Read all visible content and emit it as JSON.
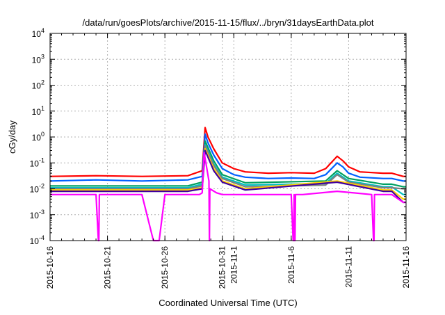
{
  "chart_data": {
    "type": "line",
    "title": "/data/run/goesPlots/archive/2015-11-15/flux/../bryn/31daysEarthData.plot",
    "xlabel": "Coordinated Universal Time (UTC)",
    "ylabel": "cGy/day",
    "yscale": "log",
    "ylim": [
      0.0001,
      10000
    ],
    "y_ticks": [
      {
        "value": 0.0001,
        "base": "10",
        "exp": "-4"
      },
      {
        "value": 0.001,
        "base": "10",
        "exp": "-3"
      },
      {
        "value": 0.01,
        "base": "10",
        "exp": "-2"
      },
      {
        "value": 0.1,
        "base": "10",
        "exp": "-1"
      },
      {
        "value": 1,
        "base": "10",
        "exp": "0"
      },
      {
        "value": 10,
        "base": "10",
        "exp": "1"
      },
      {
        "value": 100,
        "base": "10",
        "exp": "2"
      },
      {
        "value": 1000,
        "base": "10",
        "exp": "3"
      },
      {
        "value": 10000,
        "base": "10",
        "exp": "4"
      }
    ],
    "xlim": [
      "2015-10-16",
      "2015-11-16"
    ],
    "x_ticks": [
      {
        "date": "2015-10-16",
        "label": "2015-10-16"
      },
      {
        "date": "2015-10-21",
        "label": "2015-10-21"
      },
      {
        "date": "2015-10-26",
        "label": "2015-10-26"
      },
      {
        "date": "2015-10-31",
        "label": "2015-10-31"
      },
      {
        "date": "2015-11-01",
        "label": "2015-11-1"
      },
      {
        "date": "2015-11-06",
        "label": "2015-11-6"
      },
      {
        "date": "2015-11-11",
        "label": "2015-11-11"
      },
      {
        "date": "2015-11-16",
        "label": "2015-11-16"
      }
    ],
    "grid": true,
    "series": [
      {
        "color": "#ff0000",
        "x": [
          "2015-10-16",
          "2015-10-20",
          "2015-10-24",
          "2015-10-28",
          "2015-10-29T06:00",
          "2015-10-29T12:00",
          "2015-10-29T18:00",
          "2015-10-30T06:00",
          "2015-10-30T18:00",
          "2015-10-31",
          "2015-11-01",
          "2015-11-02",
          "2015-11-04",
          "2015-11-06",
          "2015-11-08",
          "2015-11-09",
          "2015-11-10",
          "2015-11-10T12:00",
          "2015-11-11",
          "2015-11-12",
          "2015-11-14",
          "2015-11-14T18:00",
          "2015-11-15T18:00",
          "2015-11-16"
        ],
        "values": [
          0.03,
          0.032,
          0.03,
          0.032,
          0.05,
          2.3,
          1.0,
          0.35,
          0.15,
          0.1,
          0.06,
          0.045,
          0.04,
          0.042,
          0.04,
          0.06,
          0.18,
          0.12,
          0.07,
          0.045,
          0.04,
          0.04,
          0.03,
          0.03
        ]
      },
      {
        "color": "#0060ff",
        "x": [
          "2015-10-16",
          "2015-10-20",
          "2015-10-24",
          "2015-10-28",
          "2015-10-29T06:00",
          "2015-10-29T12:00",
          "2015-10-29T18:00",
          "2015-10-30T06:00",
          "2015-10-30T18:00",
          "2015-10-31",
          "2015-11-01",
          "2015-11-02",
          "2015-11-04",
          "2015-11-06",
          "2015-11-08",
          "2015-11-09",
          "2015-11-10",
          "2015-11-10T12:00",
          "2015-11-11",
          "2015-11-12",
          "2015-11-14",
          "2015-11-14T18:00",
          "2015-11-15T18:00",
          "2015-11-16"
        ],
        "values": [
          0.02,
          0.022,
          0.02,
          0.022,
          0.03,
          1.3,
          0.6,
          0.2,
          0.09,
          0.06,
          0.035,
          0.028,
          0.025,
          0.026,
          0.025,
          0.035,
          0.1,
          0.07,
          0.04,
          0.028,
          0.025,
          0.025,
          0.02,
          0.02
        ]
      },
      {
        "color": "#00a060",
        "x": [
          "2015-10-16",
          "2015-10-28",
          "2015-10-29T06:00",
          "2015-10-29T12:00",
          "2015-10-30T06:00",
          "2015-10-31",
          "2015-11-02",
          "2015-11-09",
          "2015-11-10",
          "2015-11-11",
          "2015-11-14",
          "2015-11-14T18:00",
          "2015-11-15T18:00",
          "2015-11-16"
        ],
        "values": [
          0.013,
          0.013,
          0.018,
          0.7,
          0.12,
          0.035,
          0.017,
          0.02,
          0.05,
          0.025,
          0.015,
          0.015,
          0.012,
          0.012
        ]
      },
      {
        "color": "#00c0c0",
        "x": [
          "2015-10-16",
          "2015-10-28",
          "2015-10-29T06:00",
          "2015-10-29T12:00",
          "2015-10-30T06:00",
          "2015-10-31",
          "2015-11-02",
          "2015-11-09",
          "2015-11-10",
          "2015-11-11",
          "2015-11-14",
          "2015-11-14T18:00",
          "2015-11-15T18:00",
          "2015-11-16"
        ],
        "values": [
          0.011,
          0.011,
          0.015,
          0.5,
          0.09,
          0.028,
          0.014,
          0.016,
          0.04,
          0.02,
          0.012,
          0.012,
          0.006,
          0.006
        ]
      },
      {
        "color": "#7f7f7f",
        "x": [
          "2015-10-16",
          "2015-10-28",
          "2015-10-29T06:00",
          "2015-10-29T12:00",
          "2015-10-30T06:00",
          "2015-10-31",
          "2015-11-02",
          "2015-11-09",
          "2015-11-10",
          "2015-11-11",
          "2015-11-14",
          "2015-11-14T18:00",
          "2015-11-15T18:00",
          "2015-11-16"
        ],
        "values": [
          0.01,
          0.01,
          0.013,
          0.45,
          0.08,
          0.025,
          0.012,
          0.014,
          0.035,
          0.018,
          0.011,
          0.011,
          0.01,
          0.01
        ]
      },
      {
        "color": "#ffd000",
        "x": [
          "2015-10-16",
          "2015-10-28",
          "2015-10-29T06:00",
          "2015-10-29T12:00",
          "2015-10-30T06:00",
          "2015-10-31",
          "2015-11-02",
          "2015-11-10",
          "2015-11-14",
          "2015-11-14T18:00",
          "2015-11-15T18:00",
          "2015-11-16"
        ],
        "values": [
          0.009,
          0.009,
          0.011,
          0.35,
          0.06,
          0.02,
          0.01,
          0.02,
          0.009,
          0.009,
          0.004,
          0.004
        ]
      },
      {
        "color": "#4000a0",
        "x": [
          "2015-10-16",
          "2015-10-28",
          "2015-10-29T06:00",
          "2015-10-29T12:00",
          "2015-10-30T06:00",
          "2015-10-31",
          "2015-11-02",
          "2015-11-10",
          "2015-11-14",
          "2015-11-14T18:00",
          "2015-11-15T18:00",
          "2015-11-16"
        ],
        "values": [
          0.008,
          0.008,
          0.01,
          0.3,
          0.05,
          0.018,
          0.009,
          0.018,
          0.008,
          0.008,
          0.003,
          0.003
        ]
      },
      {
        "color": "#ff00ff",
        "x": [
          "2015-10-16",
          "2015-10-20",
          "2015-10-20T05:00",
          "2015-10-20T06:00",
          "2015-10-20T07:00",
          "2015-10-24",
          "2015-10-25",
          "2015-10-25T12:00",
          "2015-10-26",
          "2015-10-29",
          "2015-10-29T06:00",
          "2015-10-29T10:00",
          "2015-10-29T12:00",
          "2015-10-29T20:00",
          "2015-10-29T21:00",
          "2015-10-29T22:00",
          "2015-10-30T12:00",
          "2015-10-31",
          "2015-11-02",
          "2015-11-06",
          "2015-11-06T04:00",
          "2015-11-06T05:00",
          "2015-11-06T06:00",
          "2015-11-06T07:00",
          "2015-11-06T08:00",
          "2015-11-06T09:00",
          "2015-11-07",
          "2015-11-10",
          "2015-11-13",
          "2015-11-13T04:00",
          "2015-11-13T05:00",
          "2015-11-13T06:00",
          "2015-11-14",
          "2015-11-14T18:00",
          "2015-11-15T18:00",
          "2015-11-16"
        ],
        "values": [
          0.006,
          0.006,
          0.0001,
          0.0001,
          0.006,
          0.006,
          0.0001,
          0.0001,
          0.006,
          0.006,
          0.007,
          0.25,
          0.15,
          0.02,
          0.0001,
          0.01,
          0.007,
          0.006,
          0.006,
          0.006,
          0.0001,
          0.0001,
          0.006,
          0.0001,
          0.0001,
          0.006,
          0.006,
          0.008,
          0.006,
          0.0001,
          0.0001,
          0.006,
          0.006,
          0.006,
          0.003,
          0.003
        ]
      }
    ]
  }
}
